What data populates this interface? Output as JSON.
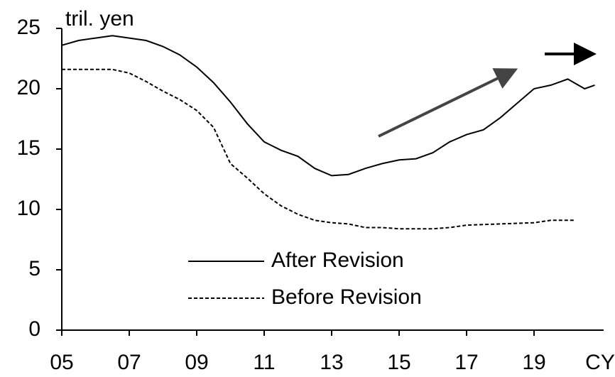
{
  "chart_data": {
    "type": "line",
    "y_label": "tril. yen",
    "x_label": "CY",
    "xlim": [
      2005,
      2021
    ],
    "xticks": [
      {
        "value": 2005,
        "label": "05"
      },
      {
        "value": 2007,
        "label": "07"
      },
      {
        "value": 2009,
        "label": "09"
      },
      {
        "value": 2011,
        "label": "11"
      },
      {
        "value": 2013,
        "label": "13"
      },
      {
        "value": 2015,
        "label": "15"
      },
      {
        "value": 2017,
        "label": "17"
      },
      {
        "value": 2019,
        "label": "19"
      }
    ],
    "ylim": [
      0,
      25
    ],
    "yticks": [
      0,
      5,
      10,
      15,
      20,
      25
    ],
    "series": [
      {
        "name": "After Revision",
        "color": "#000000",
        "style": "solid",
        "x": [
          2005,
          2005.5,
          2006,
          2006.5,
          2007,
          2007.5,
          2008,
          2008.5,
          2009,
          2009.5,
          2010,
          2010.5,
          2011,
          2011.5,
          2012,
          2012.5,
          2013,
          2013.5,
          2014,
          2014.5,
          2015,
          2015.5,
          2016,
          2016.5,
          2017,
          2017.5,
          2018,
          2018.5,
          2019,
          2019.5,
          2020,
          2020.5,
          2020.8
        ],
        "values": [
          23.6,
          24.0,
          24.2,
          24.4,
          24.2,
          24.0,
          23.5,
          22.8,
          21.8,
          20.5,
          18.9,
          17.1,
          15.6,
          14.9,
          14.4,
          13.4,
          12.8,
          12.9,
          13.4,
          13.8,
          14.1,
          14.2,
          14.7,
          15.6,
          16.2,
          16.6,
          17.6,
          18.8,
          20.0,
          20.3,
          20.8,
          20.0,
          20.3
        ]
      },
      {
        "name": "Before Revision",
        "color": "#000000",
        "style": "dashed",
        "x": [
          2005,
          2006,
          2006.5,
          2007,
          2007.5,
          2008,
          2008.5,
          2009,
          2009.5,
          2010,
          2010.5,
          2011,
          2011.5,
          2012,
          2012.5,
          2013,
          2013.5,
          2014,
          2014.5,
          2015,
          2016,
          2016.5,
          2017,
          2018,
          2019,
          2019.5,
          2020,
          2020.2
        ],
        "values": [
          21.6,
          21.6,
          21.6,
          21.3,
          20.6,
          19.8,
          19.1,
          18.2,
          16.8,
          13.8,
          12.6,
          11.3,
          10.3,
          9.6,
          9.1,
          8.9,
          8.8,
          8.5,
          8.5,
          8.4,
          8.4,
          8.5,
          8.7,
          8.8,
          8.9,
          9.1,
          9.1,
          9.1
        ]
      }
    ]
  }
}
